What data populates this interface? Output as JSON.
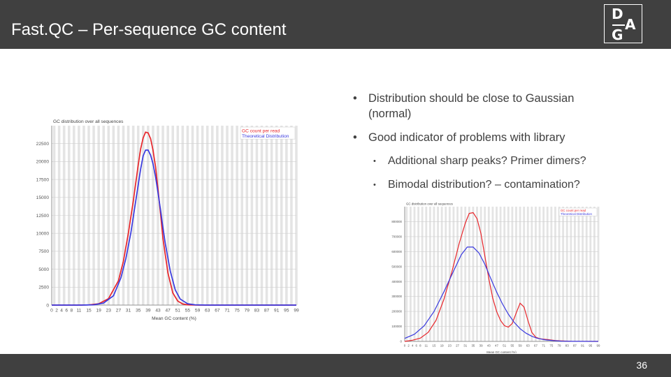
{
  "slide": {
    "title": "Fast.QC – Per-sequence GC content",
    "page_number": "36",
    "logo": {
      "letters": [
        "D",
        "A",
        "G"
      ]
    }
  },
  "bullets": [
    {
      "text": "Distribution should be close to Gaussian (normal)",
      "level": 1
    },
    {
      "text": "Good indicator of problems with library",
      "level": 1
    },
    {
      "text": "Additional sharp peaks? Primer dimers?",
      "level": 2
    },
    {
      "text": "Bimodal distribution? – contamination?",
      "level": 2
    }
  ],
  "chart_data": [
    {
      "type": "line",
      "title": "GC distribution over all sequences",
      "xlabel": "Mean GC content (%)",
      "ylabel": "",
      "xlim": [
        0,
        99
      ],
      "ylim": [
        0,
        25000
      ],
      "x_ticks": [
        "0",
        "2",
        "4",
        "6",
        "8",
        "11",
        "15",
        "19",
        "23",
        "27",
        "31",
        "35",
        "39",
        "43",
        "47",
        "51",
        "55",
        "59",
        "63",
        "67",
        "71",
        "75",
        "79",
        "83",
        "87",
        "91",
        "95",
        "99"
      ],
      "y_ticks": [
        "0",
        "2500",
        "5000",
        "7500",
        "10000",
        "12500",
        "15000",
        "17500",
        "20000",
        "22500"
      ],
      "grid": true,
      "legend": "top-right",
      "colors": {
        "gc_count": "#e8262b",
        "theoretical": "#3a3adf"
      },
      "series": [
        {
          "name": "GC count per read",
          "x": [
            0,
            10,
            15,
            19,
            23,
            27,
            29,
            31,
            33,
            35,
            36,
            37,
            38,
            39,
            40,
            41,
            42,
            43,
            44,
            45,
            47,
            49,
            51,
            53,
            55,
            59,
            99
          ],
          "y": [
            0,
            0,
            30,
            180,
            900,
            3400,
            6100,
            10000,
            14500,
            19500,
            21800,
            23300,
            24100,
            24000,
            23200,
            21600,
            19300,
            16200,
            12800,
            9300,
            4500,
            1700,
            560,
            160,
            40,
            0,
            0
          ]
        },
        {
          "name": "Theoretical Distribution",
          "x": [
            0,
            12,
            17,
            21,
            25,
            28,
            30,
            32,
            34,
            36,
            37,
            38,
            39,
            40,
            41,
            42,
            43,
            44,
            45,
            46,
            48,
            50,
            52,
            55,
            58,
            63,
            99
          ],
          "y": [
            0,
            0,
            40,
            280,
            1300,
            3800,
            6500,
            10000,
            14500,
            19000,
            20800,
            21600,
            21600,
            20900,
            19700,
            17900,
            15700,
            13300,
            10800,
            8500,
            4700,
            2100,
            850,
            180,
            40,
            0,
            0
          ]
        }
      ]
    },
    {
      "type": "line",
      "title": "GC distribution over all sequences",
      "xlabel": "Mean GC content (%)",
      "ylabel": "",
      "xlim": [
        0,
        99
      ],
      "ylim": [
        0,
        900000
      ],
      "x_ticks": [
        "0",
        "2",
        "4",
        "6",
        "8",
        "11",
        "15",
        "19",
        "23",
        "27",
        "31",
        "35",
        "39",
        "43",
        "47",
        "51",
        "55",
        "59",
        "63",
        "67",
        "71",
        "75",
        "79",
        "83",
        "87",
        "91",
        "95",
        "99"
      ],
      "y_ticks": [
        "0",
        "100000",
        "200000",
        "300000",
        "400000",
        "500000",
        "600000",
        "700000",
        "800000"
      ],
      "grid": true,
      "legend": "top-right",
      "colors": {
        "gc_count": "#e8262b",
        "theoretical": "#3a3adf"
      },
      "series": [
        {
          "name": "GC count per read",
          "x": [
            0,
            4,
            8,
            12,
            16,
            20,
            24,
            28,
            31,
            33,
            35,
            37,
            39,
            41,
            43,
            45,
            47,
            49,
            51,
            53,
            55,
            57,
            59,
            61,
            63,
            65,
            67,
            69,
            71,
            73,
            75,
            77,
            79,
            85,
            99
          ],
          "y": [
            0,
            8000,
            22000,
            60000,
            140000,
            280000,
            460000,
            660000,
            790000,
            855000,
            860000,
            820000,
            720000,
            570000,
            420000,
            290000,
            200000,
            140000,
            105000,
            95000,
            120000,
            190000,
            255000,
            230000,
            140000,
            60000,
            28000,
            18000,
            15000,
            12000,
            9000,
            6000,
            4000,
            1000,
            0
          ]
        },
        {
          "name": "Theoretical Distribution",
          "x": [
            0,
            5,
            10,
            15,
            20,
            25,
            29,
            32,
            35,
            38,
            41,
            44,
            47,
            50,
            53,
            56,
            59,
            62,
            65,
            68,
            72,
            76,
            80,
            85,
            99
          ],
          "y": [
            20000,
            48000,
            105000,
            200000,
            330000,
            470000,
            580000,
            630000,
            630000,
            590000,
            515000,
            420000,
            330000,
            250000,
            182000,
            127000,
            85000,
            55000,
            34000,
            20000,
            10000,
            5000,
            2000,
            500,
            0
          ]
        }
      ]
    }
  ]
}
